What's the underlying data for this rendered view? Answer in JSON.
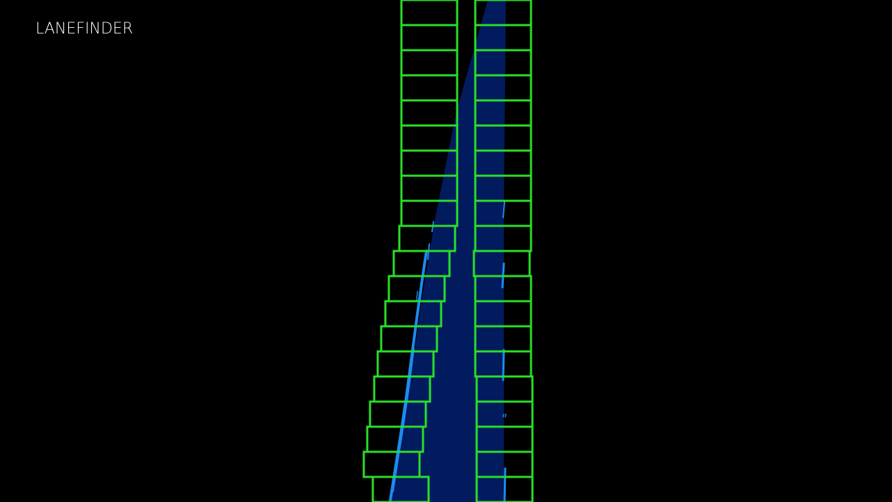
{
  "app": {
    "title": "LANEFINDER"
  },
  "colors": {
    "background": "#000000",
    "title_text": "#ffffff",
    "lane_fill": "#021b5f",
    "window_stroke": "#2adf2a",
    "lane_pixels": "#1c8cf0"
  },
  "icons": {
    "lane_area": "lane-area-polygon",
    "search_window": "sliding-window-box",
    "lane_pixel": "lane-pixel-stroke"
  }
}
